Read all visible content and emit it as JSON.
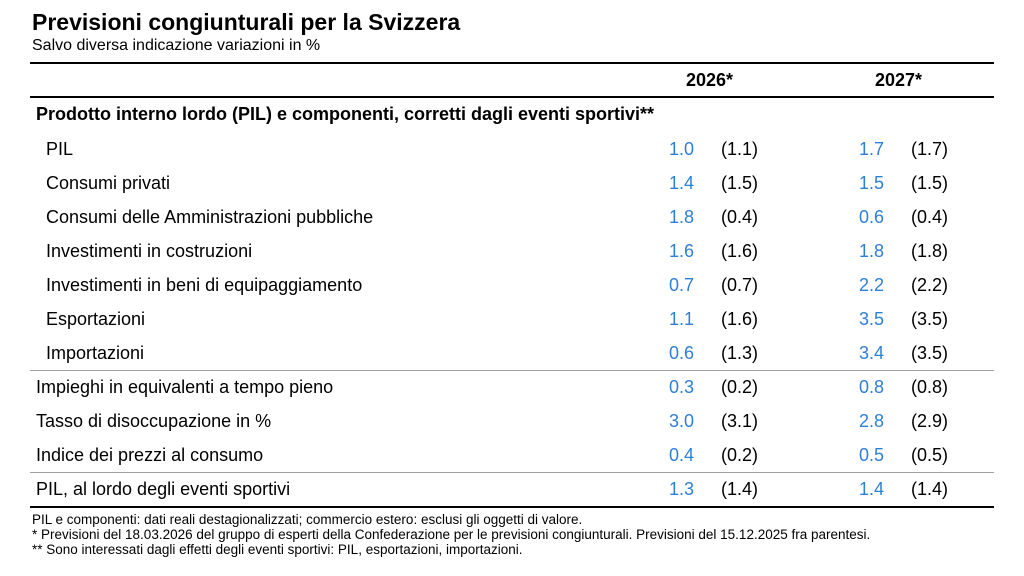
{
  "title": "Previsioni congiunturali per la Svizzera",
  "subtitle": "Salvo diversa indicazione variazioni in %",
  "columns": [
    "2026*",
    "2027*"
  ],
  "section_header": "Prodotto interno lordo (PIL) e componenti, corretti dagli eventi sportivi**",
  "rows": [
    {
      "label": "PIL",
      "v2026": "1.0",
      "p2026": "(1.1)",
      "v2027": "1.7",
      "p2027": "(1.7)"
    },
    {
      "label": "Consumi privati",
      "v2026": "1.4",
      "p2026": "(1.5)",
      "v2027": "1.5",
      "p2027": "(1.5)"
    },
    {
      "label": "Consumi delle Amministrazioni pubbliche",
      "v2026": "1.8",
      "p2026": "(0.4)",
      "v2027": "0.6",
      "p2027": "(0.4)"
    },
    {
      "label": "Investimenti in costruzioni",
      "v2026": "1.6",
      "p2026": "(1.6)",
      "v2027": "1.8",
      "p2027": "(1.8)"
    },
    {
      "label": "Investimenti in beni di equipaggiamento",
      "v2026": "0.7",
      "p2026": "(0.7)",
      "v2027": "2.2",
      "p2027": "(2.2)"
    },
    {
      "label": "Esportazioni",
      "v2026": "1.1",
      "p2026": "(1.6)",
      "v2027": "3.5",
      "p2027": "(3.5)"
    },
    {
      "label": "Importazioni",
      "v2026": "0.6",
      "p2026": "(1.3)",
      "v2027": "3.4",
      "p2027": "(3.5)"
    },
    {
      "label": "Impieghi in equivalenti a tempo pieno",
      "v2026": "0.3",
      "p2026": "(0.2)",
      "v2027": "0.8",
      "p2027": "(0.8)"
    },
    {
      "label": "Tasso di disoccupazione in %",
      "v2026": "3.0",
      "p2026": "(3.1)",
      "v2027": "2.8",
      "p2027": "(2.9)"
    },
    {
      "label": "Indice dei prezzi al consumo",
      "v2026": "0.4",
      "p2026": "(0.2)",
      "v2027": "0.5",
      "p2027": "(0.5)"
    },
    {
      "label": "PIL, al lordo degli eventi sportivi",
      "v2026": "1.3",
      "p2026": "(1.4)",
      "v2027": "1.4",
      "p2027": "(1.4)"
    }
  ],
  "footnotes": [
    "PIL e componenti: dati reali destagionalizzati; commercio estero: esclusi gli oggetti di valore.",
    "*  Previsioni del 18.03.2026 del gruppo di esperti della Confederazione per le previsioni congiunturali. Previsioni del 15.12.2025 fra parentesi.",
    "** Sono interessati dagli effetti degli eventi sportivi: PIL, esportazioni, importazioni."
  ],
  "colors": {
    "value": "#2e7fd6",
    "text": "#000000",
    "separator": "#a0a0a0"
  }
}
